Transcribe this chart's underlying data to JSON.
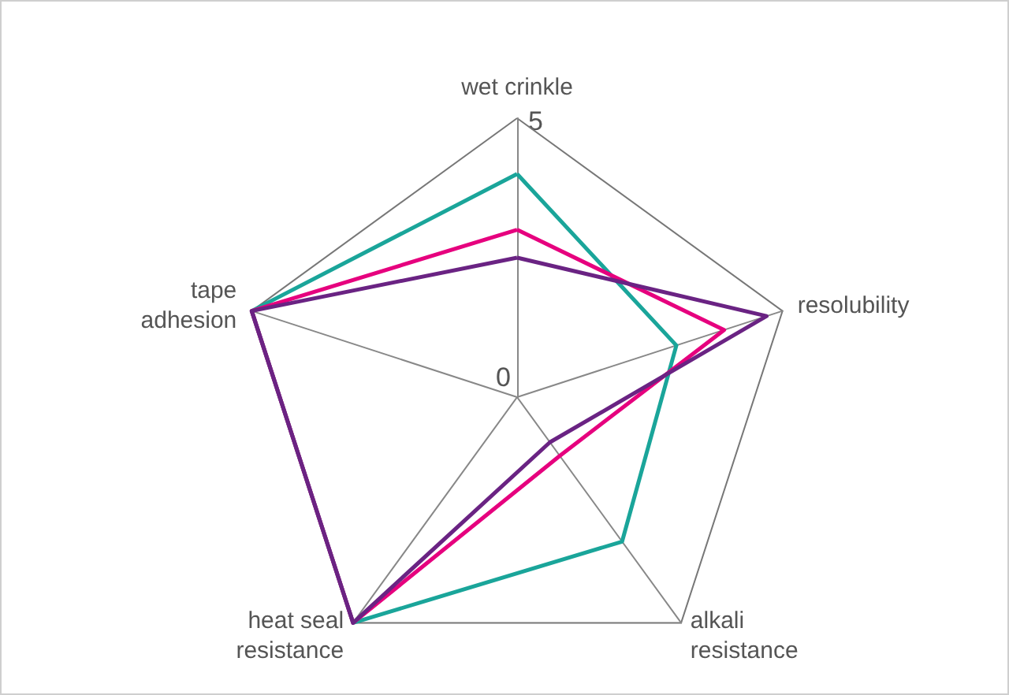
{
  "chart_data": {
    "type": "radar",
    "categories": [
      "wet crinkle",
      "resolubility",
      "alkali resistance",
      "heat seal resistance",
      "tape adhesion"
    ],
    "series": [
      {
        "color": "#1aa59a",
        "values": [
          4,
          3,
          3.2,
          5,
          5
        ]
      },
      {
        "color": "#e6007e",
        "values": [
          3,
          3.9,
          1.3,
          5,
          5
        ]
      },
      {
        "color": "#6a2383",
        "values": [
          2.5,
          4.7,
          1,
          5,
          5
        ]
      }
    ],
    "ylim": [
      0,
      5
    ],
    "yticks": [
      0,
      5
    ],
    "marker": "none",
    "line_style": "solid"
  }
}
